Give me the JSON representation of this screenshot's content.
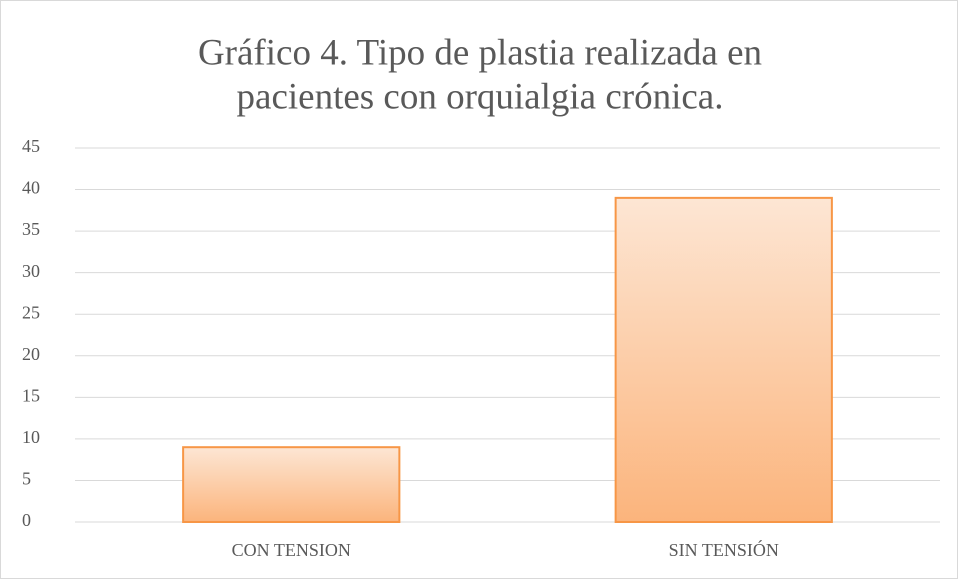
{
  "chart_data": {
    "type": "bar",
    "title": [
      "Gráfico 4. Tipo de plastia realizada en",
      "pacientes con orquialgia crónica."
    ],
    "categories": [
      "CON TENSION",
      "SIN TENSIÓN"
    ],
    "values": [
      9,
      39
    ],
    "color": "#f79646",
    "ylim": [
      0,
      45
    ],
    "yticks": [
      0,
      5,
      10,
      15,
      20,
      25,
      30,
      35,
      40,
      45
    ],
    "grid": true
  }
}
